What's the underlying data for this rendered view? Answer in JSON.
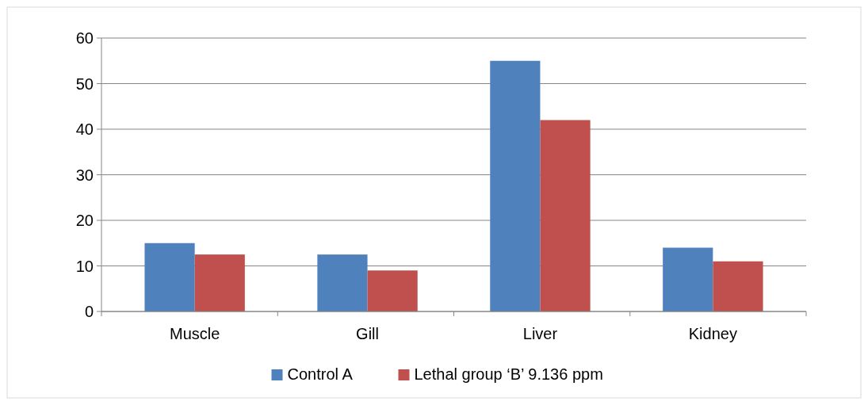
{
  "chart_data": {
    "type": "bar",
    "categories": [
      "Muscle",
      "Gill",
      "Liver",
      "Kidney"
    ],
    "series": [
      {
        "name": "Control A",
        "color": "#4f81bd",
        "values": [
          15,
          12.5,
          55,
          14
        ]
      },
      {
        "name": "Lethal group ‘B’ 9.136 ppm",
        "color": "#c0504d",
        "values": [
          12.5,
          9,
          42,
          11
        ]
      }
    ],
    "ylim": [
      0,
      60
    ],
    "yticks": [
      0,
      10,
      20,
      30,
      40,
      50,
      60
    ],
    "grid": "y",
    "legend": "bottom"
  }
}
